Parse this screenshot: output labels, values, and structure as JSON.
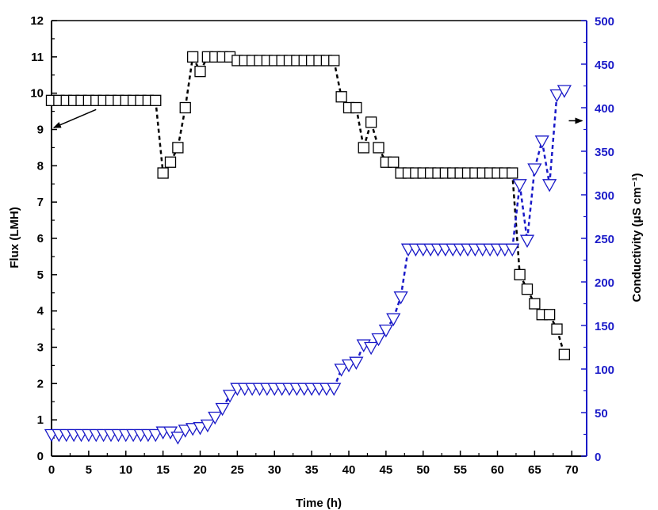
{
  "chart_data": {
    "type": "scatter",
    "xlabel": "Time (h)",
    "ylabel_left": "Flux (LMH)",
    "ylabel_right": "Conductivity (μS cm⁻¹)",
    "xlim": [
      0,
      72
    ],
    "ylim_left": [
      0,
      12
    ],
    "ylim_right": [
      0,
      500
    ],
    "x_ticks": [
      0,
      5,
      10,
      15,
      20,
      25,
      30,
      35,
      40,
      45,
      50,
      55,
      60,
      65,
      70
    ],
    "y_left_ticks": [
      0,
      1,
      2,
      3,
      4,
      5,
      6,
      7,
      8,
      9,
      10,
      11,
      12
    ],
    "y_right_ticks": [
      0,
      50,
      100,
      150,
      200,
      250,
      300,
      350,
      400,
      450,
      500
    ],
    "grid": false,
    "colors": {
      "flux": "#000000",
      "conductivity": "#1a1ac8",
      "right_axis": "#1a1ac8"
    },
    "series": [
      {
        "axis": "left",
        "marker": "square",
        "x": [
          0,
          1,
          2,
          3,
          4,
          5,
          6,
          7,
          8,
          9,
          10,
          11,
          12,
          13,
          14,
          15,
          16,
          17,
          18,
          19,
          20,
          21,
          22,
          23,
          24,
          25,
          26,
          27,
          28,
          29,
          30,
          31,
          32,
          33,
          34,
          35,
          36,
          37,
          38,
          39,
          40,
          41,
          42,
          43,
          44,
          45,
          46,
          47,
          48,
          49,
          50,
          51,
          52,
          53,
          54,
          55,
          56,
          57,
          58,
          59,
          60,
          61,
          62,
          63,
          64,
          65,
          66,
          67,
          68,
          69
        ],
        "y": [
          9.8,
          9.8,
          9.8,
          9.8,
          9.8,
          9.8,
          9.8,
          9.8,
          9.8,
          9.8,
          9.8,
          9.8,
          9.8,
          9.8,
          9.8,
          7.8,
          8.1,
          8.5,
          9.6,
          11.0,
          10.6,
          11.0,
          11.0,
          11.0,
          11.0,
          10.9,
          10.9,
          10.9,
          10.9,
          10.9,
          10.9,
          10.9,
          10.9,
          10.9,
          10.9,
          10.9,
          10.9,
          10.9,
          10.9,
          9.9,
          9.6,
          9.6,
          8.5,
          9.2,
          8.5,
          8.1,
          8.1,
          7.8,
          7.8,
          7.8,
          7.8,
          7.8,
          7.8,
          7.8,
          7.8,
          7.8,
          7.8,
          7.8,
          7.8,
          7.8,
          7.8,
          7.8,
          7.8,
          5.0,
          4.6,
          4.2,
          3.9,
          3.9,
          3.5,
          2.8
        ]
      },
      {
        "axis": "right",
        "marker": "triangle-down",
        "x": [
          0,
          1,
          2,
          3,
          4,
          5,
          6,
          7,
          8,
          9,
          10,
          11,
          12,
          13,
          14,
          15,
          16,
          17,
          18,
          19,
          20,
          21,
          22,
          23,
          24,
          25,
          26,
          27,
          28,
          29,
          30,
          31,
          32,
          33,
          34,
          35,
          36,
          37,
          38,
          39,
          40,
          41,
          42,
          43,
          44,
          45,
          46,
          47,
          48,
          49,
          50,
          51,
          52,
          53,
          54,
          55,
          56,
          57,
          58,
          59,
          60,
          61,
          62,
          63,
          64,
          65,
          66,
          67,
          68,
          69
        ],
        "y": [
          25,
          25,
          25,
          25,
          25,
          25,
          25,
          25,
          25,
          25,
          25,
          25,
          25,
          25,
          25,
          28,
          28,
          22,
          30,
          32,
          33,
          36,
          45,
          55,
          70,
          78,
          78,
          78,
          78,
          78,
          78,
          78,
          78,
          78,
          78,
          78,
          78,
          78,
          78,
          100,
          105,
          108,
          128,
          125,
          135,
          145,
          158,
          183,
          238,
          238,
          238,
          238,
          238,
          238,
          238,
          238,
          238,
          238,
          238,
          238,
          238,
          238,
          238,
          312,
          248,
          330,
          362,
          312,
          415,
          420
        ]
      }
    ],
    "annotations": [
      {
        "text": "",
        "arrow": "points-left",
        "target_axis": "left"
      },
      {
        "text": "",
        "arrow": "points-right",
        "target_axis": "right"
      }
    ]
  }
}
